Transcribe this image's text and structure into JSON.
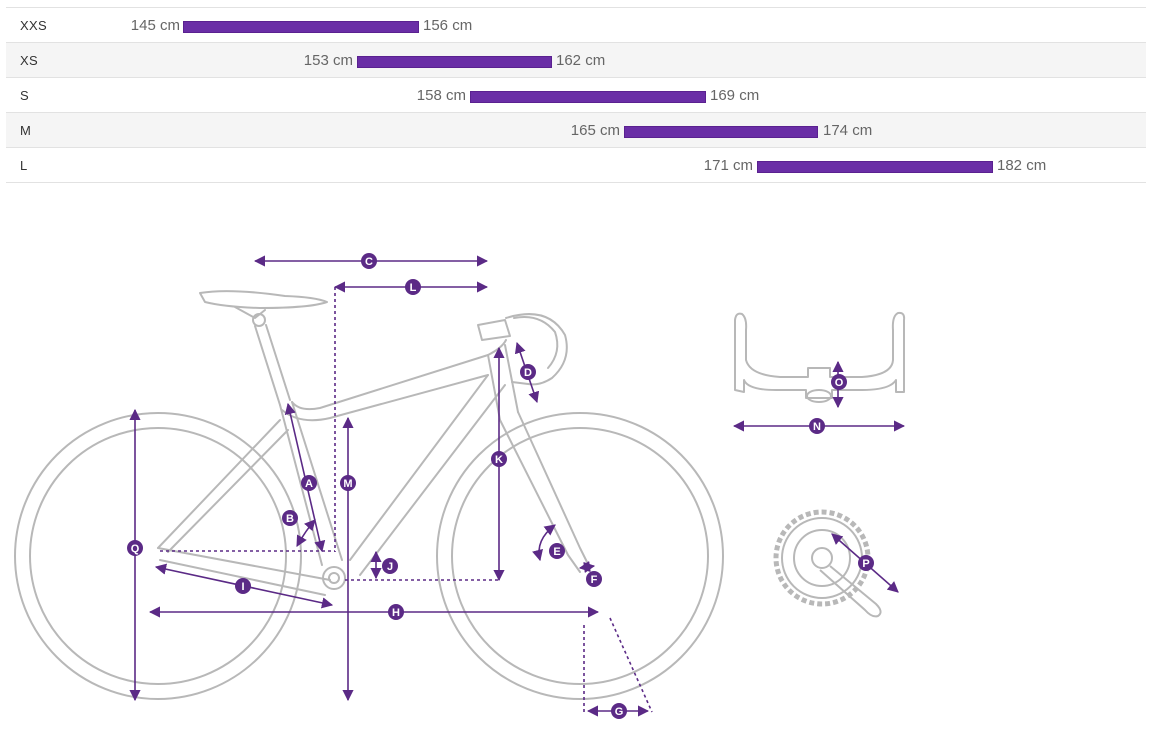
{
  "size_chart": {
    "rows": [
      {
        "size": "XXS",
        "min": "145 cm",
        "max": "156 cm"
      },
      {
        "size": "XS",
        "min": "153 cm",
        "max": "162 cm"
      },
      {
        "size": "S",
        "min": "158 cm",
        "max": "169 cm"
      },
      {
        "size": "M",
        "min": "165 cm",
        "max": "174 cm"
      },
      {
        "size": "L",
        "min": "171 cm",
        "max": "182 cm"
      }
    ]
  },
  "geometry_labels": {
    "A": "A",
    "B": "B",
    "C": "C",
    "D": "D",
    "E": "E",
    "F": "F",
    "G": "G",
    "H": "H",
    "I": "I",
    "J": "J",
    "K": "K",
    "L": "L",
    "M": "M",
    "N": "N",
    "O": "O",
    "P": "P",
    "Q": "Q"
  },
  "colors": {
    "bar": "#6a2ea6",
    "dimension": "#5b2a86",
    "frame_outline": "#b8b8b8"
  }
}
